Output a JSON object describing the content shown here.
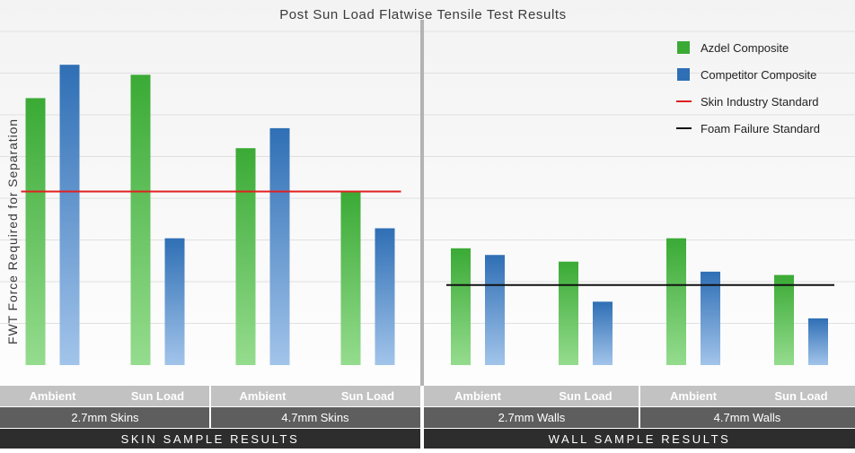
{
  "chart_data": {
    "type": "bar",
    "title": "Post Sun Load Flatwise Tensile Test Results",
    "ylabel": "FWT Force Required for Separation",
    "ylim": [
      0,
      10
    ],
    "grid": true,
    "legend_position": "top-right",
    "panels": [
      {
        "label": "SKIN SAMPLE RESULTS",
        "groups": [
          {
            "label": "2.7mm Skins",
            "conditions": [
              {
                "label": "Ambient",
                "azdel": 8.0,
                "competitor": 9.0
              },
              {
                "label": "Sun Load",
                "azdel": 8.7,
                "competitor": 3.8
              }
            ]
          },
          {
            "label": "4.7mm Skins",
            "conditions": [
              {
                "label": "Ambient",
                "azdel": 6.5,
                "competitor": 7.1
              },
              {
                "label": "Sun Load",
                "azdel": 5.2,
                "competitor": 4.1
              }
            ]
          }
        ],
        "reference_line": {
          "series": "Skin Industry Standard",
          "value": 5.2
        }
      },
      {
        "label": "WALL SAMPLE RESULTS",
        "groups": [
          {
            "label": "2.7mm Walls",
            "conditions": [
              {
                "label": "Ambient",
                "azdel": 3.5,
                "competitor": 3.3
              },
              {
                "label": "Sun Load",
                "azdel": 3.1,
                "competitor": 1.9
              }
            ]
          },
          {
            "label": "4.7mm Walls",
            "conditions": [
              {
                "label": "Ambient",
                "azdel": 3.8,
                "competitor": 2.8
              },
              {
                "label": "Sun Load",
                "azdel": 2.7,
                "competitor": 1.4
              }
            ]
          }
        ],
        "reference_line": {
          "series": "Foam Failure Standard",
          "value": 2.4
        }
      }
    ],
    "legend": [
      {
        "name": "Azdel Composite",
        "kind": "bar",
        "color": "#3aaa35"
      },
      {
        "name": "Competitor Composite",
        "kind": "bar",
        "color": "#2f6fb5"
      },
      {
        "name": "Skin Industry Standard",
        "kind": "line",
        "color": "#e02020"
      },
      {
        "name": "Foam Failure Standard",
        "kind": "line",
        "color": "#111111"
      }
    ]
  }
}
